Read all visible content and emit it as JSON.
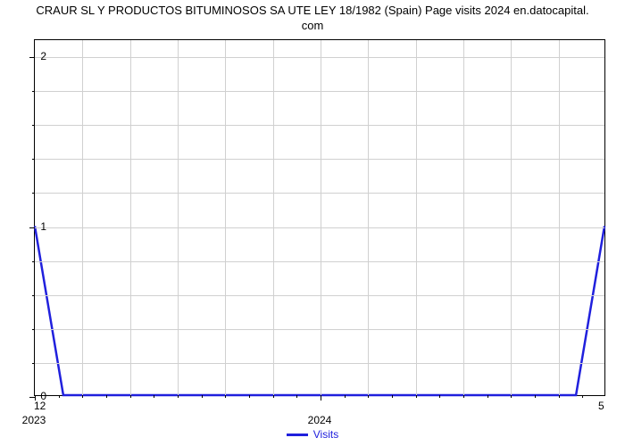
{
  "title_line1": "CRAUR SL Y PRODUCTOS BITUMINOSOS SA UTE LEY 18/1982 (Spain) Page visits 2024 en.datocapital.",
  "title_line2": "com",
  "chart": {
    "type": "line",
    "background_color": "#ffffff",
    "grid_color": "#d0d0d0",
    "axis_color": "#000000",
    "series": {
      "name": "Visits",
      "color": "#2020dd",
      "line_width": 2.5,
      "x": [
        0,
        0.05,
        0.95,
        1.0
      ],
      "y": [
        1,
        0,
        0,
        1
      ]
    },
    "y_axis": {
      "min": 0,
      "max": 2.1,
      "major_ticks": [
        0,
        1,
        2
      ],
      "minor_ticks": [
        0.2,
        0.4,
        0.6,
        0.8,
        1.2,
        1.4,
        1.6,
        1.8
      ],
      "grid_lines": [
        0.2,
        0.4,
        0.6,
        0.8,
        1.0,
        1.2,
        1.4,
        1.6,
        1.8,
        2.0
      ]
    },
    "x_axis": {
      "min": 0,
      "max": 1.0,
      "major_ticks": [
        0,
        0.5
      ],
      "major_labels": [
        "2023",
        "2024"
      ],
      "secondary_left": "12",
      "secondary_right": "5",
      "minor_ticks": [
        0.0417,
        0.0833,
        0.125,
        0.1667,
        0.2083,
        0.25,
        0.2917,
        0.3333,
        0.375,
        0.4167,
        0.4583,
        0.5417,
        0.5833,
        0.625,
        0.6667,
        0.7083,
        0.75,
        0.7917,
        0.8333,
        0.875,
        0.9167,
        0.9583
      ],
      "grid_lines": [
        0.0833,
        0.1667,
        0.25,
        0.3333,
        0.4167,
        0.5,
        0.5833,
        0.6667,
        0.75,
        0.8333,
        0.9167
      ]
    },
    "legend": {
      "label": "Visits",
      "swatch_color": "#2020dd"
    }
  }
}
